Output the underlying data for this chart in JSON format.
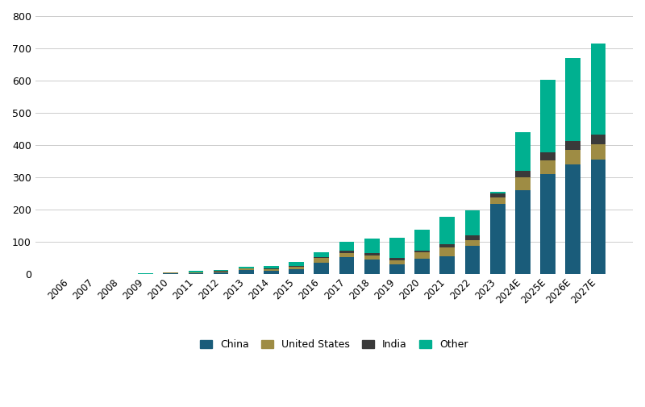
{
  "years": [
    "2006",
    "2007",
    "2008",
    "2009",
    "2010",
    "2011",
    "2012",
    "2013",
    "2014",
    "2015",
    "2016",
    "2017",
    "2018",
    "2019",
    "2020",
    "2021",
    "2022",
    "2023",
    "2024E",
    "2025E",
    "2026E",
    "2027E"
  ],
  "china": [
    0.5,
    0.1,
    0.2,
    0.3,
    2.5,
    3.0,
    5.0,
    12.0,
    10.0,
    15.0,
    34.0,
    53.0,
    44.0,
    30.0,
    48.0,
    55.0,
    87.0,
    217.0,
    260.0,
    310.0,
    340.0,
    355.0
  ],
  "united_states": [
    0.1,
    0.1,
    0.1,
    0.2,
    0.9,
    1.8,
    3.0,
    4.5,
    5.5,
    7.5,
    14.5,
    10.5,
    13.0,
    13.0,
    19.0,
    26.0,
    18.0,
    19.0,
    40.0,
    42.0,
    45.0,
    47.0
  ],
  "india": [
    0.0,
    0.0,
    0.0,
    0.0,
    0.1,
    0.3,
    0.8,
    1.0,
    1.0,
    2.0,
    4.0,
    9.0,
    8.0,
    7.0,
    4.0,
    10.0,
    14.0,
    14.0,
    20.0,
    25.0,
    28.0,
    30.0
  ],
  "other": [
    0.2,
    0.2,
    0.3,
    0.5,
    1.5,
    3.9,
    4.2,
    5.5,
    7.5,
    11.5,
    13.5,
    27.0,
    44.0,
    62.0,
    65.0,
    87.0,
    77.0,
    5.0,
    120.0,
    225.0,
    257.0,
    283.0
  ],
  "color_china": "#1a5c7a",
  "color_us": "#9e8c44",
  "color_india": "#3a3a3a",
  "color_other": "#00b090",
  "ylim": [
    0,
    800
  ],
  "yticks": [
    0,
    100,
    200,
    300,
    400,
    500,
    600,
    700,
    800
  ],
  "legend_labels": [
    "China",
    "United States",
    "India",
    "Other"
  ],
  "background_color": "#ffffff"
}
